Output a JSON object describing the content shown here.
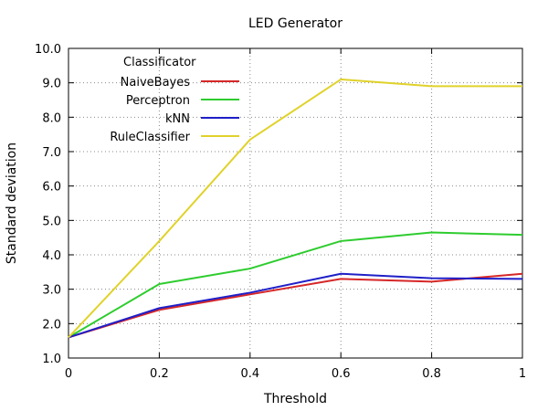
{
  "chart_data": {
    "type": "line",
    "title": "LED Generator",
    "xlabel": "Threshold",
    "ylabel": "Standard deviation",
    "xlim": [
      0,
      1
    ],
    "ylim": [
      1.0,
      10.0
    ],
    "x_ticks": [
      "0",
      "0.2",
      "0.4",
      "0.6",
      "0.8",
      "1"
    ],
    "x_tick_values": [
      0,
      0.2,
      0.4,
      0.6,
      0.8,
      1
    ],
    "y_ticks": [
      "1.0",
      "2.0",
      "3.0",
      "4.0",
      "5.0",
      "6.0",
      "7.0",
      "8.0",
      "9.0",
      "10.0"
    ],
    "y_tick_values": [
      1,
      2,
      3,
      4,
      5,
      6,
      7,
      8,
      9,
      10
    ],
    "grid": true,
    "legend_title": "Classificator",
    "legend_position": "top-left",
    "x": [
      0,
      0.2,
      0.4,
      0.6,
      0.8,
      1
    ],
    "series": [
      {
        "name": "NaiveBayes",
        "color": "#d62728",
        "values": [
          1.6,
          2.4,
          2.85,
          3.3,
          3.22,
          3.45
        ]
      },
      {
        "name": "Perceptron",
        "color": "#2ecc2e",
        "values": [
          1.6,
          3.15,
          3.6,
          4.4,
          4.65,
          4.58
        ]
      },
      {
        "name": "kNN",
        "color": "#1f1fc8",
        "values": [
          1.6,
          2.45,
          2.9,
          3.45,
          3.32,
          3.3
        ]
      },
      {
        "name": "RuleClassifier",
        "color": "#e0d22a",
        "values": [
          1.6,
          4.4,
          7.35,
          9.1,
          8.9,
          8.9
        ]
      }
    ]
  }
}
